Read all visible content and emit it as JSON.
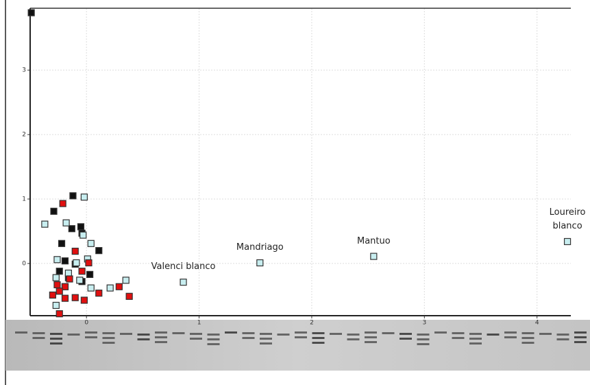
{
  "chart_data": {
    "type": "scatter",
    "xlim": [
      -0.5,
      4.3
    ],
    "ylim": [
      -0.81,
      3.96
    ],
    "xticks": [
      0,
      1,
      2,
      3,
      4
    ],
    "yticks": [
      0,
      1,
      2,
      3
    ],
    "grid": true,
    "series": [
      {
        "color": "#111111",
        "x": [
          -0.49,
          -0.29,
          -0.12,
          -0.13,
          -0.05,
          -0.22,
          -0.04,
          0.11,
          -0.19,
          -0.1,
          -0.24,
          0.03,
          -0.16,
          -0.04
        ],
        "values": [
          3.89,
          0.81,
          1.05,
          0.54,
          0.57,
          0.31,
          0.47,
          0.2,
          0.04,
          -0.01,
          -0.12,
          -0.17,
          -0.22,
          -0.28
        ]
      },
      {
        "color": "#c8eef0",
        "x": [
          -0.37,
          -0.02,
          -0.18,
          -0.03,
          0.04,
          -0.26,
          -0.09,
          0.01,
          -0.16,
          -0.27,
          -0.06,
          -0.19,
          0.04,
          0.21,
          0.35,
          -0.27,
          0.86,
          1.54,
          2.55,
          4.27
        ],
        "values": [
          0.61,
          1.03,
          0.63,
          0.44,
          0.31,
          0.06,
          0.01,
          0.07,
          -0.15,
          -0.22,
          -0.26,
          -0.36,
          -0.38,
          -0.38,
          -0.26,
          -0.65,
          -0.29,
          0.01,
          0.11,
          0.34
        ],
        "labels": [
          null,
          null,
          null,
          null,
          null,
          null,
          null,
          null,
          null,
          null,
          null,
          null,
          null,
          null,
          null,
          null,
          "Valenci blanco",
          "Mandriago",
          "Mantuo",
          "Loureiro blanco"
        ]
      },
      {
        "color": "#e01010",
        "x": [
          -0.21,
          -0.1,
          0.02,
          -0.04,
          -0.26,
          -0.19,
          -0.15,
          -0.3,
          -0.19,
          -0.1,
          -0.02,
          0.11,
          0.29,
          0.38,
          -0.24,
          -0.24
        ],
        "values": [
          0.93,
          0.19,
          0.01,
          -0.12,
          -0.33,
          -0.36,
          -0.24,
          -0.49,
          -0.54,
          -0.53,
          -0.57,
          -0.46,
          -0.36,
          -0.51,
          -0.78,
          -0.43
        ]
      }
    ]
  }
}
